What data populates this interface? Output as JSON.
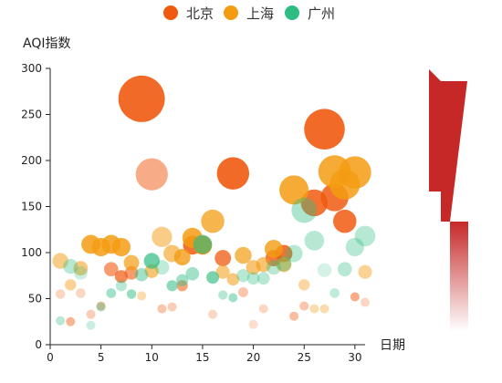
{
  "chart_data": {
    "type": "scatter",
    "xlabel": "日期",
    "ylabel": "AQI指数",
    "xlim": [
      0,
      31
    ],
    "ylim": [
      0,
      300
    ],
    "xticks": [
      0,
      5,
      10,
      15,
      20,
      25,
      30
    ],
    "yticks": [
      0,
      50,
      100,
      150,
      200,
      250,
      300
    ],
    "legend_position": "top-center",
    "series": [
      {
        "name": "北京",
        "color": "#f05a0f",
        "points": [
          [
            1,
            55
          ],
          [
            2,
            25
          ],
          [
            3,
            56
          ],
          [
            4,
            33
          ],
          [
            5,
            42
          ],
          [
            6,
            82
          ],
          [
            7,
            74
          ],
          [
            8,
            78
          ],
          [
            9,
            267
          ],
          [
            10,
            185
          ],
          [
            11,
            39
          ],
          [
            12,
            41
          ],
          [
            13,
            64
          ],
          [
            14,
            108
          ],
          [
            15,
            108
          ],
          [
            16,
            33
          ],
          [
            17,
            94
          ],
          [
            18,
            186
          ],
          [
            19,
            57
          ],
          [
            20,
            22
          ],
          [
            21,
            39
          ],
          [
            22,
            94
          ],
          [
            23,
            99
          ],
          [
            24,
            31
          ],
          [
            25,
            42
          ],
          [
            26,
            154
          ],
          [
            27,
            234
          ],
          [
            28,
            160
          ],
          [
            29,
            134
          ],
          [
            30,
            52
          ],
          [
            31,
            46
          ]
        ],
        "opacity": [
          0.25,
          0.45,
          0.25,
          0.3,
          0.4,
          0.6,
          0.7,
          0.6,
          0.9,
          0.5,
          0.35,
          0.3,
          0.55,
          0.85,
          0.8,
          0.25,
          0.75,
          0.9,
          0.35,
          0.2,
          0.25,
          0.8,
          0.85,
          0.4,
          0.35,
          0.85,
          0.9,
          0.85,
          0.85,
          0.5,
          0.25
        ]
      },
      {
        "name": "上海",
        "color": "#f39c12",
        "points": [
          [
            1,
            91
          ],
          [
            2,
            65
          ],
          [
            3,
            83
          ],
          [
            4,
            109
          ],
          [
            5,
            106
          ],
          [
            6,
            109
          ],
          [
            7,
            106
          ],
          [
            8,
            89
          ],
          [
            9,
            53
          ],
          [
            10,
            80
          ],
          [
            11,
            117
          ],
          [
            12,
            99
          ],
          [
            13,
            95
          ],
          [
            14,
            116
          ],
          [
            15,
            108
          ],
          [
            16,
            134
          ],
          [
            17,
            79
          ],
          [
            18,
            71
          ],
          [
            19,
            97
          ],
          [
            20,
            84
          ],
          [
            21,
            87
          ],
          [
            22,
            104
          ],
          [
            23,
            87
          ],
          [
            24,
            168
          ],
          [
            25,
            65
          ],
          [
            26,
            39
          ],
          [
            27,
            39
          ],
          [
            28,
            188
          ],
          [
            29,
            174
          ],
          [
            30,
            187
          ],
          [
            31,
            79
          ]
        ],
        "opacity": [
          0.5,
          0.45,
          0.55,
          0.85,
          0.85,
          0.85,
          0.85,
          0.7,
          0.35,
          0.6,
          0.5,
          0.6,
          0.8,
          0.85,
          0.85,
          0.75,
          0.55,
          0.55,
          0.7,
          0.6,
          0.6,
          0.8,
          0.6,
          0.85,
          0.4,
          0.35,
          0.35,
          0.85,
          0.85,
          0.85,
          0.45
        ]
      },
      {
        "name": "广州",
        "color": "#2fbc82",
        "points": [
          [
            1,
            26
          ],
          [
            2,
            85
          ],
          [
            3,
            78
          ],
          [
            4,
            21
          ],
          [
            5,
            41
          ],
          [
            6,
            56
          ],
          [
            7,
            64
          ],
          [
            8,
            55
          ],
          [
            9,
            76
          ],
          [
            10,
            91
          ],
          [
            11,
            84
          ],
          [
            12,
            64
          ],
          [
            13,
            70
          ],
          [
            14,
            77
          ],
          [
            15,
            109
          ],
          [
            16,
            73
          ],
          [
            17,
            54
          ],
          [
            18,
            51
          ],
          [
            19,
            75
          ],
          [
            20,
            72
          ],
          [
            21,
            72
          ],
          [
            22,
            84
          ],
          [
            23,
            88
          ],
          [
            24,
            99
          ],
          [
            25,
            146
          ],
          [
            26,
            113
          ],
          [
            27,
            81
          ],
          [
            28,
            56
          ],
          [
            29,
            82
          ],
          [
            30,
            106
          ],
          [
            31,
            118
          ]
        ],
        "opacity": [
          0.35,
          0.35,
          0.25,
          0.25,
          0.35,
          0.45,
          0.35,
          0.5,
          0.45,
          0.7,
          0.3,
          0.55,
          0.45,
          0.45,
          0.65,
          0.65,
          0.35,
          0.45,
          0.35,
          0.35,
          0.35,
          0.35,
          0.35,
          0.35,
          0.4,
          0.35,
          0.2,
          0.3,
          0.35,
          0.35,
          0.35
        ]
      }
    ]
  },
  "visual_map": {
    "top_color": "#c62828",
    "bottom_color": "#ffffff"
  }
}
